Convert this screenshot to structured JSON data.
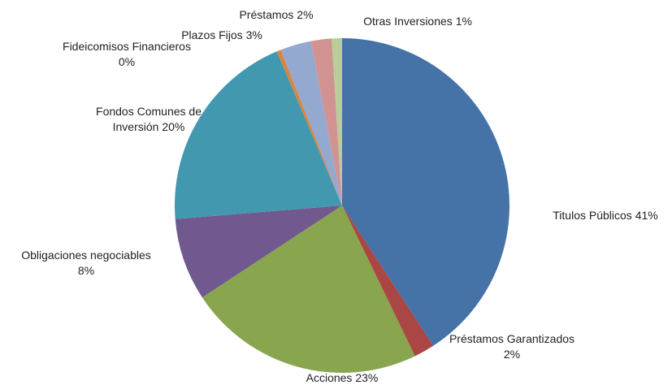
{
  "chart_data": {
    "type": "pie",
    "categories": [
      "Titulos Públicos",
      "Préstamos Garantizados",
      "Acciones",
      "Obligaciones negociables",
      "Fondos Comunes de Inversión",
      "Fideicomisos Financieros",
      "Plazos Fijos",
      "Préstamos",
      "Otras Inversiones"
    ],
    "values": [
      41,
      2,
      23,
      8,
      20,
      0.4,
      3,
      2,
      1
    ],
    "value_labels": [
      "41%",
      "2%",
      "23%",
      "8%",
      "20%",
      "0%",
      "3%",
      "2%",
      "1%"
    ],
    "colors": [
      "#4572a7",
      "#aa4643",
      "#89a54e",
      "#71588f",
      "#4198af",
      "#db843d",
      "#93a9cf",
      "#d19392",
      "#b9cd96"
    ],
    "start_angle": 0,
    "direction": "clockwise"
  }
}
